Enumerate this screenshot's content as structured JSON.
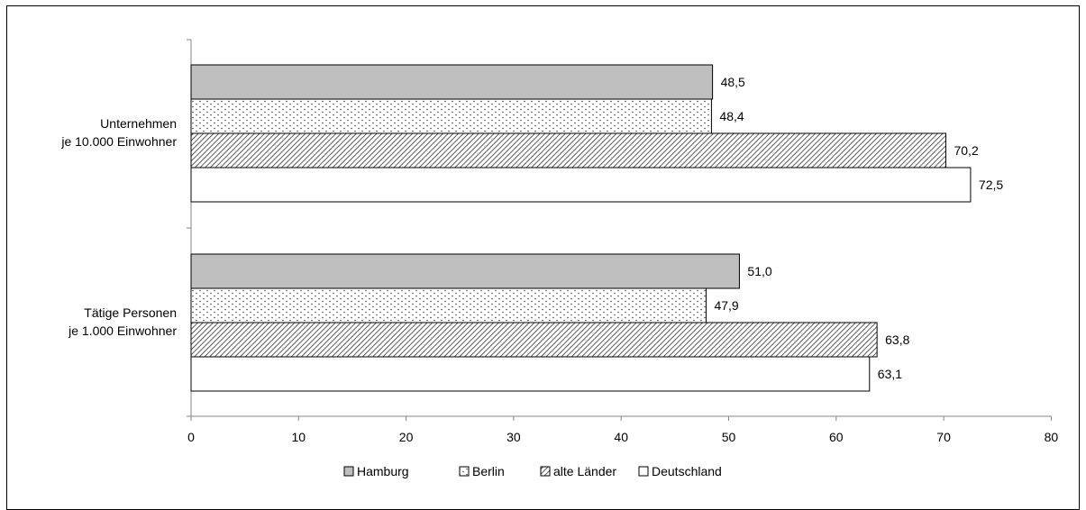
{
  "chart_data": {
    "type": "bar",
    "orientation": "horizontal",
    "categories": [
      "Unternehmen\nje 10.000 Einwohner",
      "Tätige Personen\nje 1.000 Einwohner"
    ],
    "series": [
      {
        "name": "Hamburg",
        "values": [
          48.5,
          51.0
        ],
        "labels": [
          "48,5",
          "51,0"
        ],
        "fill": "#bfbfbf",
        "pattern": "solid"
      },
      {
        "name": "Berlin",
        "values": [
          48.4,
          47.9
        ],
        "labels": [
          "48,4",
          "47,9"
        ],
        "fill": "#ffffff",
        "pattern": "dots"
      },
      {
        "name": "alte Länder",
        "values": [
          70.2,
          63.8
        ],
        "labels": [
          "70,2",
          "63,8"
        ],
        "fill": "#ffffff",
        "pattern": "diagonal"
      },
      {
        "name": "Deutschland",
        "values": [
          72.5,
          63.1
        ],
        "labels": [
          "72,5",
          "63,1"
        ],
        "fill": "#ffffff",
        "pattern": "none"
      }
    ],
    "xlim": [
      0,
      80
    ],
    "xticks": [
      "0",
      "10",
      "20",
      "30",
      "40",
      "50",
      "60",
      "70",
      "80"
    ],
    "grid": false,
    "legend_position": "bottom"
  }
}
